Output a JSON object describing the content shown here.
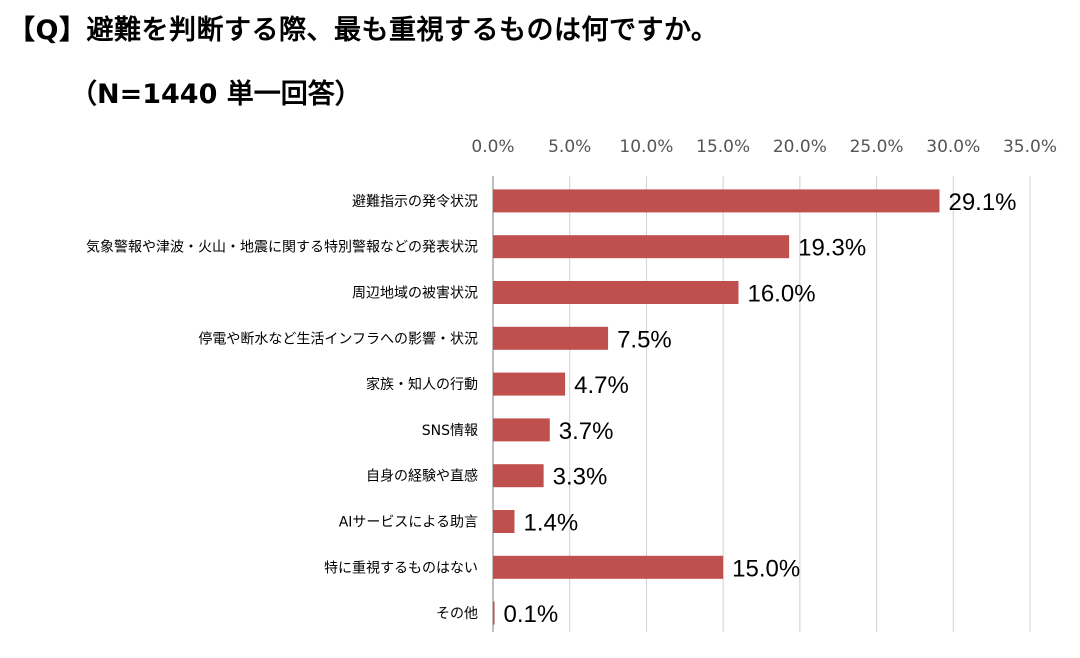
{
  "question": "【Q】避難を判断する際、最も重視するものは何ですか。",
  "sample": "（N=1440 単一回答）",
  "colors": {
    "bar": "#c0504d",
    "grid": "#d0d0d0",
    "axis": "#7f7f7f"
  },
  "chart_data": {
    "type": "bar",
    "orientation": "horizontal",
    "categories": [
      "避難指示の発令状況",
      "気象警報や津波・火山・地震に関する特別警報などの発表状況",
      "周辺地域の被害状況",
      "停電や断水など生活インフラへの影響・状況",
      "家族・知人の行動",
      "SNS情報",
      "自身の経験や直感",
      "AIサービスによる助言",
      "特に重視するものはない",
      "その他"
    ],
    "values": [
      29.1,
      19.3,
      16.0,
      7.5,
      4.7,
      3.7,
      3.3,
      1.4,
      15.0,
      0.1
    ],
    "data_labels": [
      "29.1%",
      "19.3%",
      "16.0%",
      "7.5%",
      "4.7%",
      "3.7%",
      "3.3%",
      "1.4%",
      "15.0%",
      "0.1%"
    ],
    "x_ticks": [
      "0.0%",
      "5.0%",
      "10.0%",
      "15.0%",
      "20.0%",
      "25.0%",
      "30.0%",
      "35.0%"
    ],
    "xlim": [
      0,
      35
    ],
    "grid": true,
    "x_axis_position": "top"
  }
}
